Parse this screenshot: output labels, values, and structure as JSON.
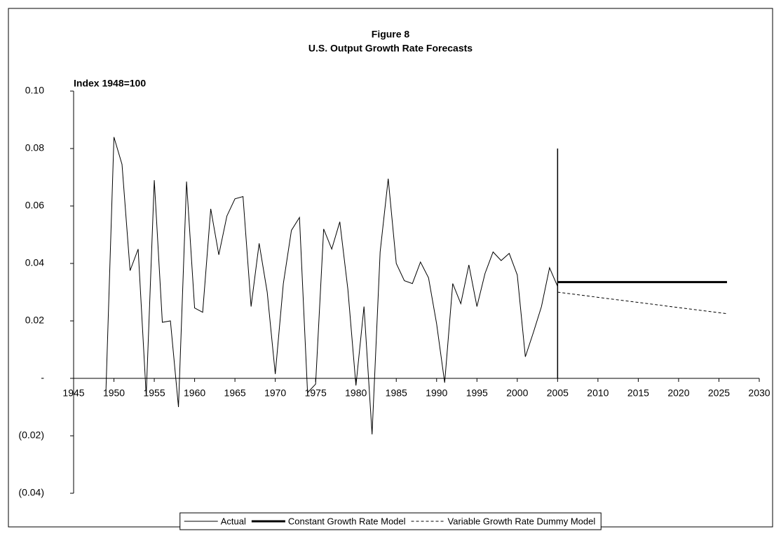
{
  "chart_data": {
    "type": "line",
    "title": "Figure 8",
    "subtitle": "U.S. Output Growth Rate Forecasts",
    "annotation": "Index 1948=100",
    "xlim": [
      1945,
      2030
    ],
    "xticks": [
      1945,
      1950,
      1955,
      1960,
      1965,
      1970,
      1975,
      1980,
      1985,
      1990,
      1995,
      2000,
      2005,
      2010,
      2015,
      2020,
      2025,
      2030
    ],
    "ylim": [
      -0.04,
      0.1
    ],
    "yticks": [
      {
        "value": 0.1,
        "label": "0.10"
      },
      {
        "value": 0.08,
        "label": "0.08"
      },
      {
        "value": 0.06,
        "label": "0.06"
      },
      {
        "value": 0.04,
        "label": "0.04"
      },
      {
        "value": 0.02,
        "label": "0.02"
      },
      {
        "value": 0,
        "label": "-"
      },
      {
        "value": -0.02,
        "label": "(0.02)"
      },
      {
        "value": -0.04,
        "label": "(0.04)"
      }
    ],
    "vertical_line": {
      "x": 2005,
      "ymin": 0,
      "ymax": 0.08
    },
    "legend": "bottom",
    "series": [
      {
        "name": "Actual",
        "color": "#000000",
        "width": 1,
        "dash": "solid",
        "x": [
          1949,
          1950,
          1951,
          1952,
          1953,
          1954,
          1955,
          1956,
          1957,
          1958,
          1959,
          1960,
          1961,
          1962,
          1963,
          1964,
          1965,
          1966,
          1967,
          1968,
          1969,
          1970,
          1971,
          1972,
          1973,
          1974,
          1975,
          1976,
          1977,
          1978,
          1979,
          1980,
          1981,
          1982,
          1983,
          1984,
          1985,
          1986,
          1987,
          1988,
          1989,
          1990,
          1991,
          1992,
          1993,
          1994,
          1995,
          1996,
          1997,
          1998,
          1999,
          2000,
          2001,
          2002,
          2003,
          2004,
          2005
        ],
        "values": [
          -0.005,
          0.084,
          0.0745,
          0.0375,
          0.045,
          -0.006,
          0.069,
          0.0195,
          0.02,
          -0.01,
          0.0685,
          0.0245,
          0.023,
          0.059,
          0.043,
          0.0565,
          0.0625,
          0.0633,
          0.025,
          0.047,
          0.03,
          0.0015,
          0.033,
          0.0515,
          0.056,
          -0.005,
          -0.002,
          0.052,
          0.045,
          0.0545,
          0.031,
          -0.0025,
          0.025,
          -0.0195,
          0.044,
          0.0695,
          0.04,
          0.034,
          0.033,
          0.0405,
          0.035,
          0.019,
          -0.0015,
          0.033,
          0.026,
          0.0395,
          0.025,
          0.0365,
          0.044,
          0.041,
          0.0435,
          0.036,
          0.0075,
          0.016,
          0.025,
          0.0385,
          0.032
        ]
      },
      {
        "name": "Constant Growth Rate Model",
        "color": "#000000",
        "width": 3,
        "dash": "solid",
        "x": [
          2005,
          2026
        ],
        "values": [
          0.0335,
          0.0335
        ]
      },
      {
        "name": "Variable Growth Rate Dummy Model",
        "color": "#000000",
        "width": 1,
        "dash": "dashed",
        "x": [
          2005,
          2026
        ],
        "values": [
          0.03,
          0.0225
        ]
      }
    ]
  }
}
